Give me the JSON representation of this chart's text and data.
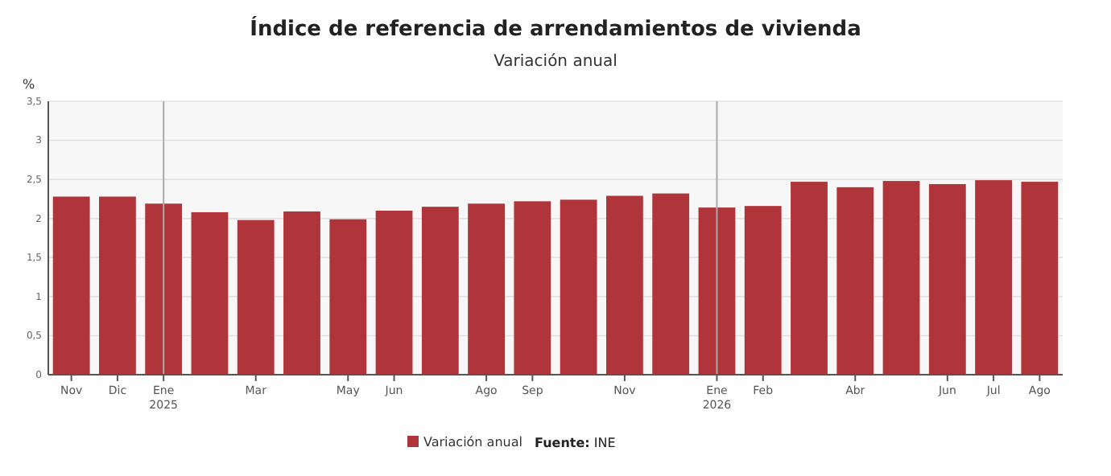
{
  "chart_data": {
    "type": "bar",
    "title": "Índice de referencia de arrendamientos de vivienda",
    "subtitle": "Variación anual",
    "ylabel": "%",
    "categories": [
      "Nov",
      "Dic",
      "Ene\n2025",
      null,
      "Mar",
      null,
      "May",
      "Jun",
      null,
      "Ago",
      "Sep",
      null,
      "Nov",
      null,
      "Ene\n2026",
      "Feb",
      null,
      "Abr",
      null,
      "Jun",
      "Jul",
      "Ago"
    ],
    "series": [
      {
        "name": "Variación anual",
        "color": "#b0353a",
        "values": [
          2.28,
          2.28,
          2.19,
          2.08,
          1.98,
          2.09,
          1.99,
          2.1,
          2.15,
          2.19,
          2.22,
          2.24,
          2.29,
          2.32,
          2.14,
          2.16,
          2.47,
          2.4,
          2.48,
          2.44,
          2.49,
          2.47
        ]
      }
    ],
    "ylim": [
      0,
      3.5
    ],
    "yticks": [
      0,
      {
        "value": 0.5,
        "label": "0,5"
      },
      1,
      {
        "value": 1.5,
        "label": "1,5"
      },
      2,
      {
        "value": 2.5,
        "label": "2,5"
      },
      3,
      {
        "value": 3.5,
        "label": "3,5"
      }
    ],
    "grid": "y",
    "legend": "bottom",
    "ref_lines": [
      {
        "axis": "x",
        "value": "Ene\n2025",
        "color": "#aaaaaa"
      },
      {
        "axis": "x",
        "value": "Ene\n2026",
        "color": "#aaaaaa"
      }
    ],
    "annotations": [
      "Fuente: INE"
    ]
  }
}
